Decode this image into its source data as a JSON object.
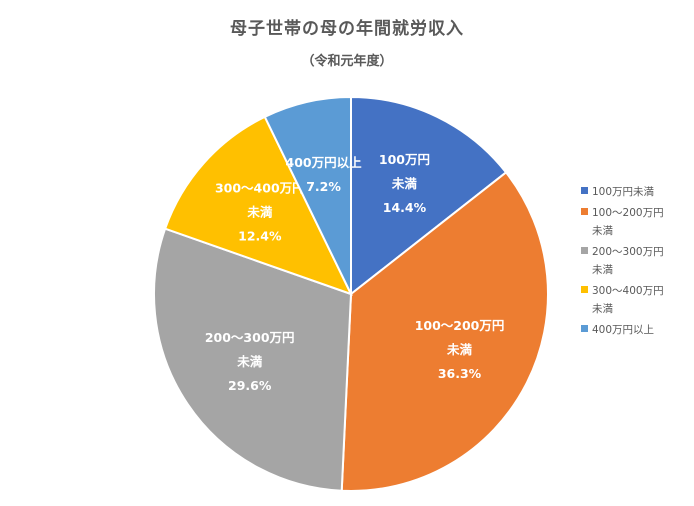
{
  "chart_data": {
    "type": "pie",
    "title": "母子世帯の母の年間就労収入",
    "subtitle": "（令和元年度）",
    "categories": [
      "100万円未満",
      "100〜200万円未満",
      "200〜300万円未満",
      "300〜400万円未満",
      "400万円以上"
    ],
    "label_lines": [
      [
        "100万円",
        "未満"
      ],
      [
        "100〜200万円",
        "未満"
      ],
      [
        "200〜300万円",
        "未満"
      ],
      [
        "300〜400万円",
        "未満"
      ],
      [
        "400万円以上"
      ]
    ],
    "values": [
      14.4,
      36.3,
      29.6,
      12.4,
      7.2
    ],
    "value_labels": [
      "14.4%",
      "36.3%",
      "29.6%",
      "12.4%",
      "7.2%"
    ],
    "colors": [
      "#4472C4",
      "#ED7D31",
      "#A5A5A5",
      "#FFC000",
      "#5B9BD5"
    ],
    "legend_position": "right"
  }
}
